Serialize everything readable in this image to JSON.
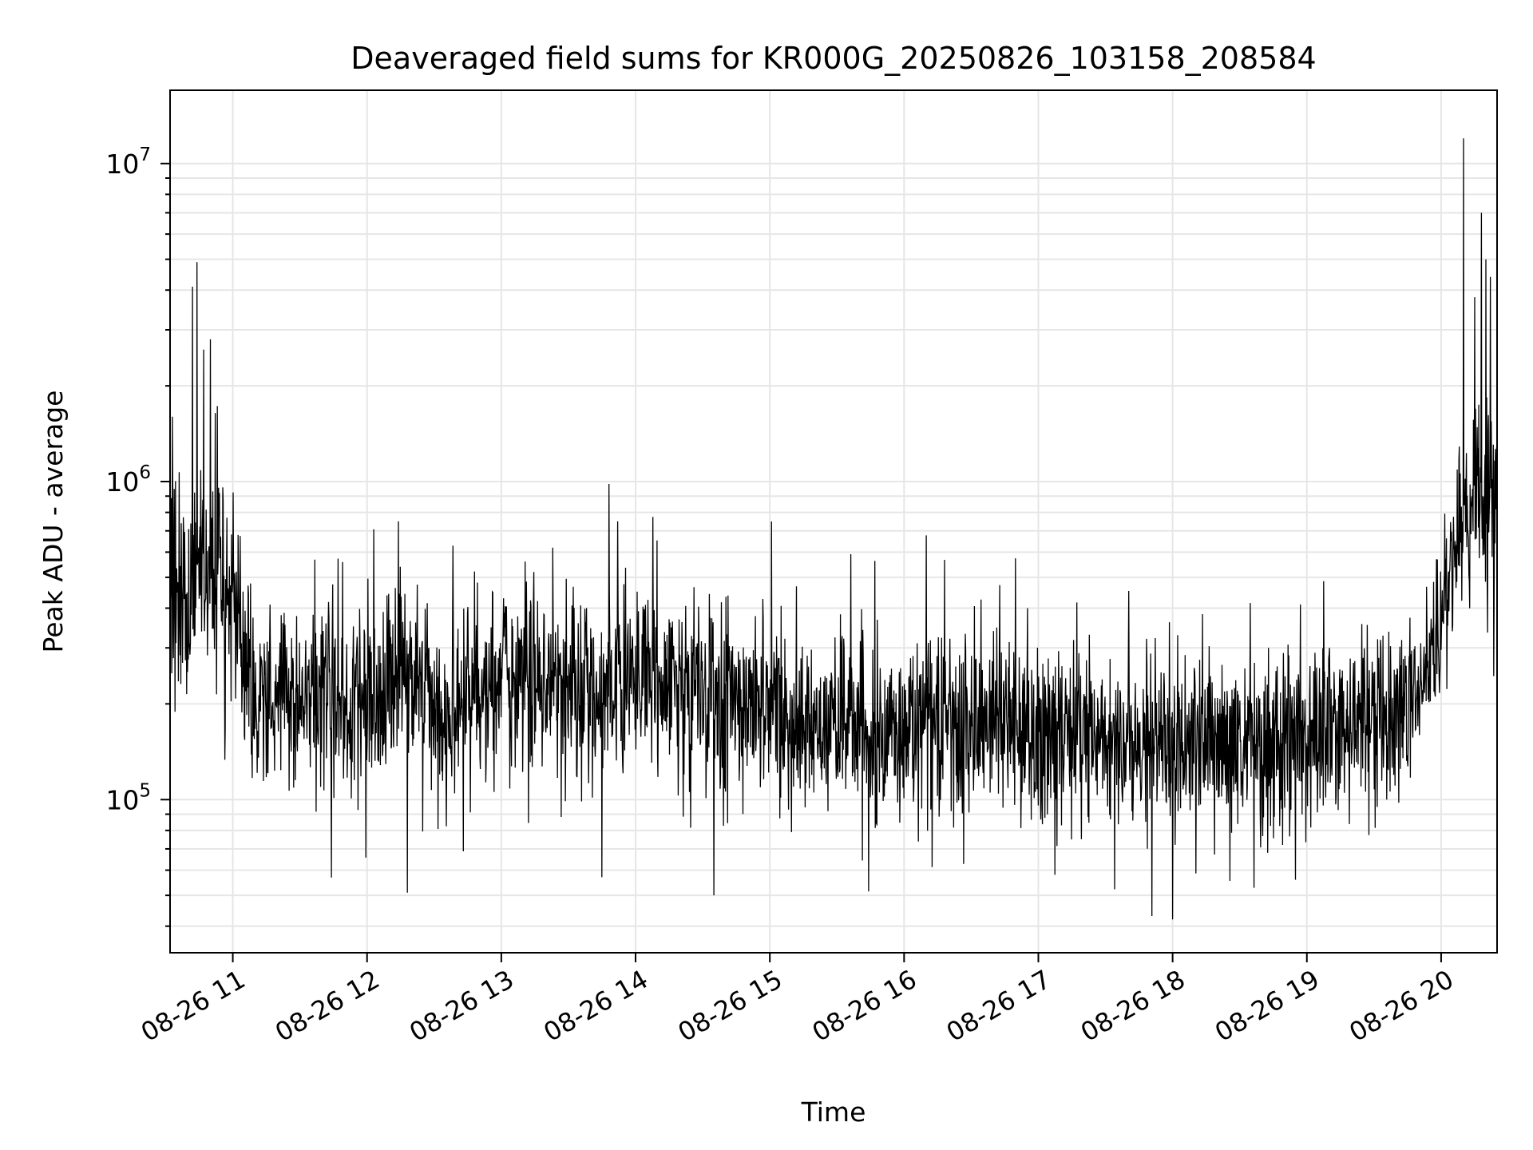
{
  "chart_data": {
    "type": "line",
    "title": "Deaveraged field sums for KR000G_20250826_103158_208584",
    "xlabel": "Time",
    "ylabel": "Peak ADU - average",
    "x_range": [
      "2025-08-26T10:31:58",
      "2025-08-26T20:25:00"
    ],
    "xticks": [
      {
        "label": "08-26 11",
        "time": "2025-08-26T11:00:00"
      },
      {
        "label": "08-26 12",
        "time": "2025-08-26T12:00:00"
      },
      {
        "label": "08-26 13",
        "time": "2025-08-26T13:00:00"
      },
      {
        "label": "08-26 14",
        "time": "2025-08-26T14:00:00"
      },
      {
        "label": "08-26 15",
        "time": "2025-08-26T15:00:00"
      },
      {
        "label": "08-26 16",
        "time": "2025-08-26T16:00:00"
      },
      {
        "label": "08-26 17",
        "time": "2025-08-26T17:00:00"
      },
      {
        "label": "08-26 18",
        "time": "2025-08-26T18:00:00"
      },
      {
        "label": "08-26 19",
        "time": "2025-08-26T19:00:00"
      },
      {
        "label": "08-26 20",
        "time": "2025-08-26T20:00:00"
      }
    ],
    "y_scale": "log",
    "ylim": [
      33000,
      17000000
    ],
    "yticks": [
      {
        "base": "10",
        "exp": "5",
        "value": 100000
      },
      {
        "base": "10",
        "exp": "6",
        "value": 1000000
      },
      {
        "base": "10",
        "exp": "7",
        "value": 10000000
      }
    ],
    "grid": true,
    "line_color": "#000000",
    "grid_color": "#e6e6e6",
    "series": [
      {
        "x": [
          "2025-08-26T10:31:58",
          "2025-08-26T10:40:00",
          "2025-08-26T10:50:00",
          "2025-08-26T11:00:00",
          "2025-08-26T11:10:00",
          "2025-08-26T11:20:00",
          "2025-08-26T11:30:00",
          "2025-08-26T11:40:00",
          "2025-08-26T11:50:00",
          "2025-08-26T12:00:00",
          "2025-08-26T12:10:00",
          "2025-08-26T12:20:00",
          "2025-08-26T12:30:00",
          "2025-08-26T12:40:00",
          "2025-08-26T12:50:00",
          "2025-08-26T13:00:00",
          "2025-08-26T13:10:00",
          "2025-08-26T13:20:00",
          "2025-08-26T13:30:00",
          "2025-08-26T13:40:00",
          "2025-08-26T13:50:00",
          "2025-08-26T14:00:00",
          "2025-08-26T14:10:00",
          "2025-08-26T14:20:00",
          "2025-08-26T14:30:00",
          "2025-08-26T14:40:00",
          "2025-08-26T14:50:00",
          "2025-08-26T15:00:00",
          "2025-08-26T15:10:00",
          "2025-08-26T15:20:00",
          "2025-08-26T15:30:00",
          "2025-08-26T15:40:00",
          "2025-08-26T15:50:00",
          "2025-08-26T16:00:00",
          "2025-08-26T16:10:00",
          "2025-08-26T16:20:00",
          "2025-08-26T16:30:00",
          "2025-08-26T16:40:00",
          "2025-08-26T16:50:00",
          "2025-08-26T17:00:00",
          "2025-08-26T17:10:00",
          "2025-08-26T17:20:00",
          "2025-08-26T17:30:00",
          "2025-08-26T17:40:00",
          "2025-08-26T17:50:00",
          "2025-08-26T18:00:00",
          "2025-08-26T18:10:00",
          "2025-08-26T18:20:00",
          "2025-08-26T18:30:00",
          "2025-08-26T18:40:00",
          "2025-08-26T18:50:00",
          "2025-08-26T19:00:00",
          "2025-08-26T19:10:00",
          "2025-08-26T19:20:00",
          "2025-08-26T19:30:00",
          "2025-08-26T19:40:00",
          "2025-08-26T19:50:00",
          "2025-08-26T20:00:00",
          "2025-08-26T20:05:00",
          "2025-08-26T20:10:00",
          "2025-08-26T20:15:00",
          "2025-08-26T20:20:00",
          "2025-08-26T20:25:00"
        ],
        "y": [
          450000,
          400000,
          550000,
          450000,
          220000,
          210000,
          200000,
          230000,
          210000,
          220000,
          240000,
          280000,
          180000,
          190000,
          210000,
          230000,
          220000,
          230000,
          220000,
          210000,
          230000,
          250000,
          250000,
          240000,
          220000,
          210000,
          200000,
          190000,
          170000,
          175000,
          180000,
          180000,
          170000,
          165000,
          170000,
          170000,
          165000,
          170000,
          170000,
          165000,
          165000,
          160000,
          160000,
          155000,
          155000,
          150000,
          145000,
          145000,
          150000,
          150000,
          155000,
          160000,
          165000,
          165000,
          170000,
          175000,
          220000,
          350000,
          600000,
          800000,
          950000,
          900000,
          800000
        ]
      }
    ],
    "spikes": [
      {
        "x": "2025-08-26T10:42:00",
        "y": 4100000
      },
      {
        "x": "2025-08-26T10:44:00",
        "y": 4900000
      },
      {
        "x": "2025-08-26T10:47:00",
        "y": 2600000
      },
      {
        "x": "2025-08-26T10:50:00",
        "y": 2800000
      },
      {
        "x": "2025-08-26T10:33:00",
        "y": 1600000
      },
      {
        "x": "2025-08-26T12:14:00",
        "y": 750000
      },
      {
        "x": "2025-08-26T13:23:00",
        "y": 620000
      },
      {
        "x": "2025-08-26T13:52:00",
        "y": 750000
      },
      {
        "x": "2025-08-26T20:10:00",
        "y": 12000000
      },
      {
        "x": "2025-08-26T20:18:00",
        "y": 7000000
      },
      {
        "x": "2025-08-26T20:20:00",
        "y": 5000000
      },
      {
        "x": "2025-08-26T20:15:00",
        "y": 3800000
      },
      {
        "x": "2025-08-26T20:22:00",
        "y": 4400000
      },
      {
        "x": "2025-08-26T18:00:00",
        "y": 42000
      },
      {
        "x": "2025-08-26T14:35:00",
        "y": 50000
      },
      {
        "x": "2025-08-26T12:18:00",
        "y": 51000
      }
    ]
  }
}
